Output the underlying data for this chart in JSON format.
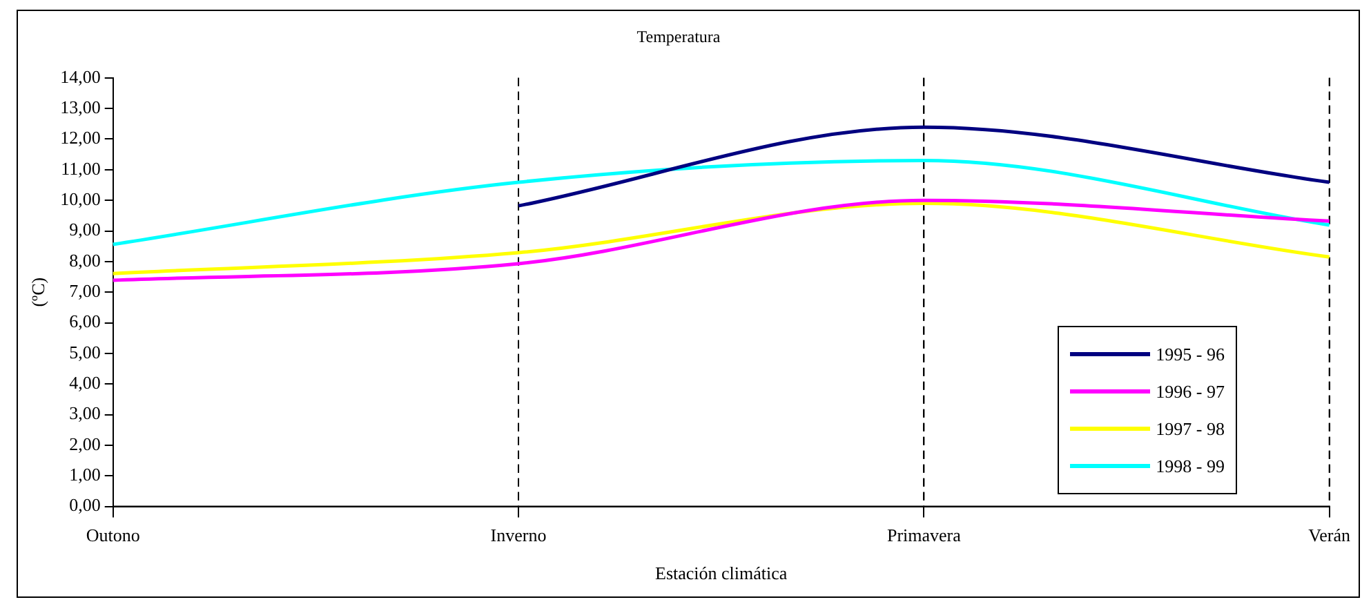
{
  "chart_data": {
    "type": "line",
    "title": "Temperatura",
    "xlabel": "Estación climática",
    "ylabel": "(ºC)",
    "categories": [
      "Outono",
      "Inverno",
      "Primavera",
      "Verán"
    ],
    "series": [
      {
        "name": "1995 - 96",
        "color": "#000080",
        "values": [
          null,
          9.82,
          12.39,
          10.59
        ]
      },
      {
        "name": "1996 - 97",
        "color": "#ff00ff",
        "values": [
          7.39,
          7.93,
          10.0,
          9.32
        ]
      },
      {
        "name": "1997 - 98",
        "color": "#ffff00",
        "values": [
          7.61,
          8.29,
          9.9,
          8.15
        ]
      },
      {
        "name": "1998 - 99",
        "color": "#00ffff",
        "values": [
          8.56,
          10.59,
          11.3,
          9.19
        ]
      }
    ],
    "ylim": [
      0,
      14
    ],
    "yticks": [
      {
        "value": 0,
        "label": "0,00"
      },
      {
        "value": 1,
        "label": "1,00"
      },
      {
        "value": 2,
        "label": "2,00"
      },
      {
        "value": 3,
        "label": "3,00"
      },
      {
        "value": 4,
        "label": "4,00"
      },
      {
        "value": 5,
        "label": "5,00"
      },
      {
        "value": 6,
        "label": "6,00"
      },
      {
        "value": 7,
        "label": "7,00"
      },
      {
        "value": 8,
        "label": "8,00"
      },
      {
        "value": 9,
        "label": "9,00"
      },
      {
        "value": 10,
        "label": "10,00"
      },
      {
        "value": 11,
        "label": "11,00"
      },
      {
        "value": 12,
        "label": "12,00"
      },
      {
        "value": 13,
        "label": "13,00"
      },
      {
        "value": 14,
        "label": "14,00"
      }
    ],
    "grid": "x",
    "legend": "right",
    "marker": "none",
    "line_style": "solid"
  }
}
